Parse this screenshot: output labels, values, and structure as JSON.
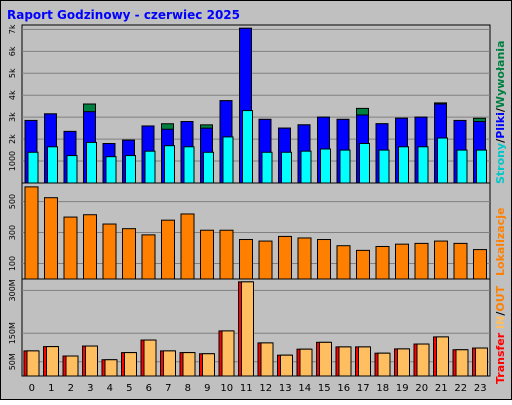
{
  "title": "Raport Godzinowy -  czerwiec 2025",
  "colors": {
    "background": "#c0c0c0",
    "plot": "#c0c0c0",
    "title": "#0000ff",
    "strony": "#00ffff",
    "pliki": "#0000ff",
    "wywolania": "#008040",
    "lokalizacje": "#ff8000",
    "transfer_in": "#ff0000",
    "transfer_out": "#ffbf60"
  },
  "legend": {
    "panel1": {
      "strony": "Strony",
      "sep1": "/",
      "pliki": "Pliki",
      "sep2": "/",
      "wywolania": "Wywołania"
    },
    "panel2": {
      "lokalizacje": "Lokalizacje"
    },
    "panel3": {
      "transfer": "Transfer",
      "in": "IN",
      "sep": "/",
      "out": "OUT"
    }
  },
  "chart_data": [
    {
      "type": "bar",
      "categories": [
        "0",
        "1",
        "2",
        "3",
        "4",
        "5",
        "6",
        "7",
        "8",
        "9",
        "10",
        "11",
        "12",
        "13",
        "14",
        "15",
        "16",
        "17",
        "18",
        "19",
        "20",
        "21",
        "22",
        "23"
      ],
      "y_ticks": [
        "1000",
        "2k",
        "3k",
        "4k",
        "5k",
        "6k",
        "7k"
      ],
      "ylim": [
        0,
        7200
      ],
      "series": [
        {
          "name": "Wywołania",
          "values": [
            2850,
            3150,
            2350,
            3600,
            1800,
            1950,
            2500,
            2700,
            2800,
            2650,
            3750,
            7050,
            2900,
            2500,
            2650,
            3000,
            2900,
            3400,
            2700,
            2950,
            3000,
            3650,
            2850,
            2950
          ]
        },
        {
          "name": "Pliki",
          "values": [
            2850,
            3150,
            2350,
            3250,
            1800,
            1950,
            2600,
            2450,
            2800,
            2500,
            3750,
            7050,
            2900,
            2500,
            2650,
            3000,
            2900,
            3100,
            2700,
            2950,
            3000,
            3600,
            2850,
            2800
          ]
        },
        {
          "name": "Strony",
          "values": [
            1400,
            1650,
            1250,
            1850,
            1200,
            1250,
            1450,
            1700,
            1650,
            1400,
            2100,
            3300,
            1400,
            1400,
            1450,
            1550,
            1500,
            1800,
            1500,
            1650,
            1650,
            2050,
            1500,
            1500
          ]
        }
      ]
    },
    {
      "type": "bar",
      "categories": [
        "0",
        "1",
        "2",
        "3",
        "4",
        "5",
        "6",
        "7",
        "8",
        "9",
        "10",
        "11",
        "12",
        "13",
        "14",
        "15",
        "16",
        "17",
        "18",
        "19",
        "20",
        "21",
        "22",
        "23"
      ],
      "y_ticks": [
        "100",
        "300",
        "500"
      ],
      "ylim": [
        0,
        620
      ],
      "series": [
        {
          "name": "Lokalizacje",
          "values": [
            595,
            525,
            400,
            415,
            355,
            325,
            285,
            380,
            420,
            315,
            315,
            255,
            245,
            275,
            265,
            255,
            215,
            185,
            210,
            225,
            230,
            245,
            230,
            190
          ]
        }
      ]
    },
    {
      "type": "bar",
      "categories": [
        "0",
        "1",
        "2",
        "3",
        "4",
        "5",
        "6",
        "7",
        "8",
        "9",
        "10",
        "11",
        "12",
        "13",
        "14",
        "15",
        "16",
        "17",
        "18",
        "19",
        "20",
        "21",
        "22",
        "23"
      ],
      "y_ticks": [
        "50M",
        "150M",
        "300M"
      ],
      "ylim": [
        0,
        340
      ],
      "series": [
        {
          "name": "IN",
          "values": [
            88,
            103,
            70,
            105,
            57,
            82,
            126,
            88,
            82,
            78,
            158,
            330,
            116,
            73,
            94,
            118,
            102,
            102,
            80,
            95,
            112,
            137,
            92,
            98
          ]
        },
        {
          "name": "OUT",
          "values": [
            88,
            103,
            70,
            105,
            57,
            82,
            126,
            88,
            82,
            78,
            158,
            330,
            116,
            73,
            94,
            118,
            102,
            102,
            80,
            95,
            112,
            137,
            92,
            98
          ]
        }
      ]
    }
  ]
}
